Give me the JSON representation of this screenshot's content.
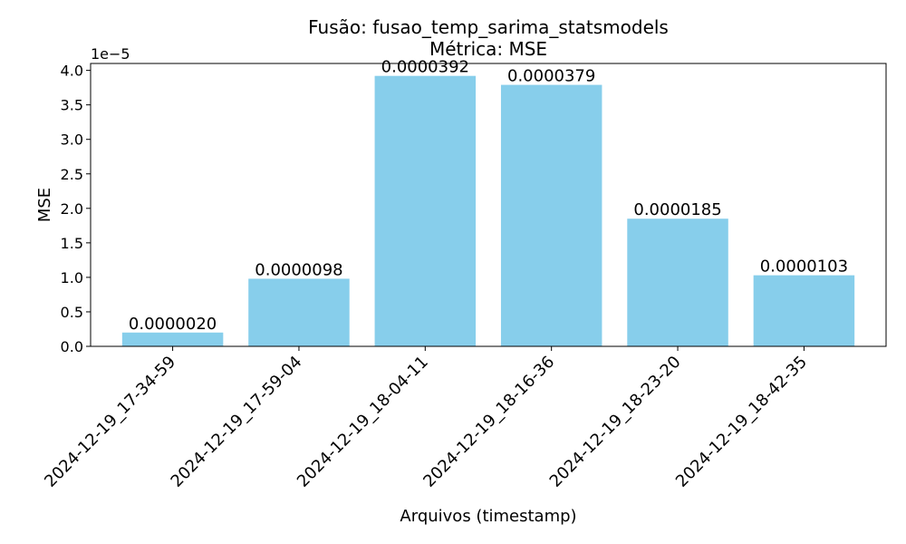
{
  "chart_data": {
    "type": "bar",
    "title": "Fusão: fusao_temp_sarima_statsmodels",
    "subtitle": "Métrica: MSE",
    "xlabel": "Arquivos (timestamp)",
    "ylabel": "MSE",
    "offset_label": "1e−5",
    "ylim": [
      0,
      4.1
    ],
    "yticks": [
      "0.0",
      "0.5",
      "1.0",
      "1.5",
      "2.0",
      "2.5",
      "3.0",
      "3.5",
      "4.0"
    ],
    "categories": [
      "2024-12-19_17-34-59",
      "2024-12-19_17-59-04",
      "2024-12-19_18-04-11",
      "2024-12-19_18-16-36",
      "2024-12-19_18-23-20",
      "2024-12-19_18-42-35"
    ],
    "values": [
      0.2,
      0.98,
      3.92,
      3.79,
      1.85,
      1.03
    ],
    "data_labels": [
      "0.0000020",
      "0.0000098",
      "0.0000392",
      "0.0000379",
      "0.0000185",
      "0.0000103"
    ],
    "bar_color": "#87ceeb",
    "grid": false,
    "legend": "none"
  }
}
